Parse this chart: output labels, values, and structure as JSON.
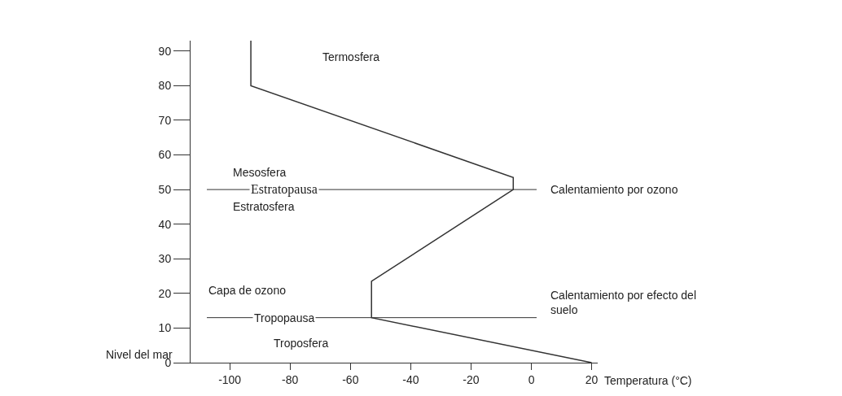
{
  "chart_data": {
    "type": "line",
    "xlabel": "Temperatura (°C)",
    "x": [
      20,
      -53,
      -53,
      -6,
      -6,
      -93,
      -93
    ],
    "values": [
      0,
      13,
      23.5,
      50,
      53.5,
      80,
      93
    ],
    "color": "#333333",
    "xlim": [
      -113,
      22
    ],
    "xticks": [
      -100,
      -80,
      -60,
      -40,
      -20,
      0,
      20
    ],
    "ylim": [
      0,
      93
    ],
    "yticks": [
      0,
      10,
      20,
      30,
      40,
      50,
      60,
      70,
      80,
      90
    ],
    "marker": "none",
    "line_style": "solid",
    "ref_lines": [
      {
        "axis": "y",
        "value": 50,
        "label": "Estratopausa",
        "color": "#333333"
      },
      {
        "axis": "y",
        "value": 13,
        "label": "Tropopausa",
        "color": "#333333"
      }
    ],
    "annotations": [
      "Termosfera",
      "Mesosfera",
      "Estratosfera",
      "Capa de ozono",
      "Troposfera",
      "Calentamiento por ozono",
      "Calentamiento por efecto del suelo",
      "Nivel del mar"
    ]
  }
}
